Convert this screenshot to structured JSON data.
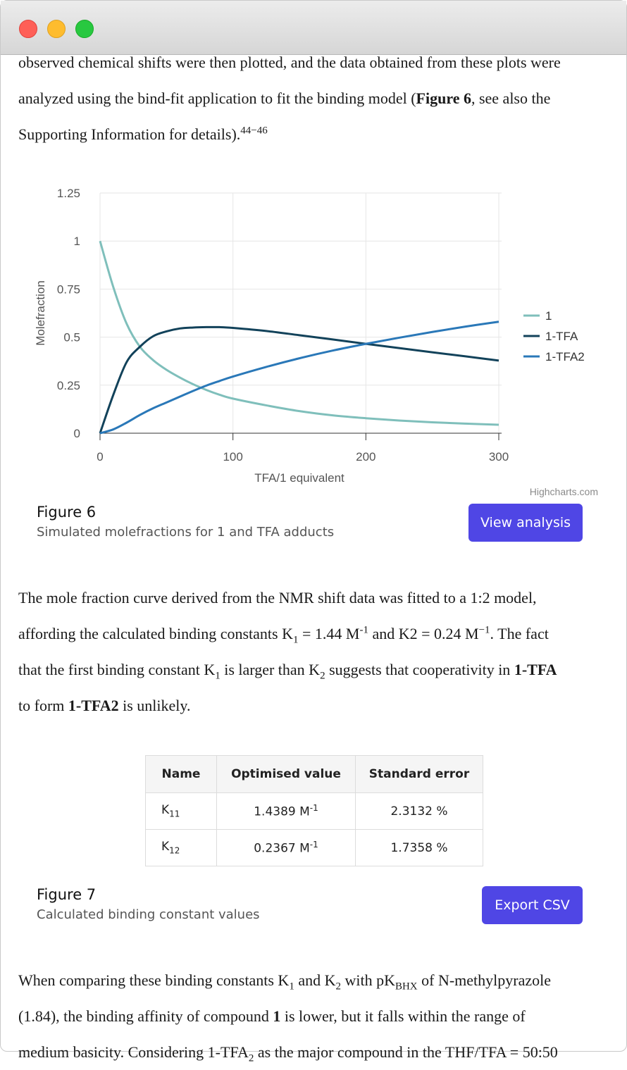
{
  "intro": {
    "line1": "observed chemical shifts were then plotted, and the data obtained from these plots were",
    "line2_pre": "analyzed using the bind-fit application to fit the binding model (",
    "line2_bold": "Figure 6",
    "line2_post": ", see also the",
    "line3": "Supporting Information for details).",
    "citation": "44−46"
  },
  "colors": {
    "series_1": "#7fbfbb",
    "series_1tfa": "#12425a",
    "series_1tfa2": "#2a78b8",
    "button": "#4f46e5"
  },
  "chart_data": {
    "type": "line",
    "title": "",
    "xlabel": "TFA/1 equivalent",
    "ylabel": "Molefraction",
    "xlim": [
      0,
      300
    ],
    "ylim": [
      0,
      1.25
    ],
    "x_ticks": [
      "0",
      "100",
      "200",
      "300"
    ],
    "y_ticks": [
      "0",
      "0.25",
      "0.5",
      "0.75",
      "1",
      "1.25"
    ],
    "grid": true,
    "legend": "right",
    "credit": "Highcharts.com",
    "x": [
      0,
      10,
      20,
      30,
      40,
      50,
      60,
      70,
      80,
      90,
      100,
      125,
      150,
      175,
      200,
      225,
      250,
      275,
      300
    ],
    "series": [
      {
        "name": "1",
        "values": [
          1.0,
          0.76,
          0.57,
          0.45,
          0.38,
          0.33,
          0.29,
          0.255,
          0.225,
          0.2,
          0.18,
          0.145,
          0.115,
          0.093,
          0.078,
          0.066,
          0.057,
          0.05,
          0.044
        ]
      },
      {
        "name": "1-TFA",
        "values": [
          0.0,
          0.2,
          0.37,
          0.45,
          0.505,
          0.53,
          0.545,
          0.55,
          0.552,
          0.552,
          0.548,
          0.532,
          0.51,
          0.488,
          0.465,
          0.443,
          0.421,
          0.4,
          0.378
        ]
      },
      {
        "name": "1-TFA2",
        "values": [
          0.0,
          0.02,
          0.055,
          0.095,
          0.13,
          0.16,
          0.19,
          0.22,
          0.248,
          0.272,
          0.295,
          0.345,
          0.39,
          0.43,
          0.465,
          0.497,
          0.527,
          0.555,
          0.58
        ]
      }
    ]
  },
  "figure6": {
    "title": "Figure 6",
    "desc": "Simulated molefractions for 1 and TFA adducts",
    "button": "View analysis"
  },
  "para2": {
    "l1": "The mole fraction curve derived from the NMR shift data was fitted to a 1:2 model,",
    "l2a": "affording the calculated binding constants K",
    "l2b": "1",
    "l2c": " = 1.44 M",
    "l2d": "-1",
    "l2e": " and K2 = 0.24 M",
    "l2f": "−1",
    "l2g": ". The fact",
    "l3a": "that the first binding constant K",
    "l3b": "1",
    "l3c": " is larger than K",
    "l3d": "2",
    "l3e": " suggests that cooperativity in ",
    "l3f": "1-TFA",
    "l4a": "to form ",
    "l4b": "1-TFA2",
    "l4c": " is unlikely."
  },
  "table": {
    "headers": [
      "Name",
      "Optimised value",
      "Standard error"
    ],
    "rows": [
      {
        "name": "K",
        "sub": "11",
        "value": "1.4389 M",
        "sup": "-1",
        "error": "2.3132 %"
      },
      {
        "name": "K",
        "sub": "12",
        "value": "0.2367 M",
        "sup": "-1",
        "error": "1.7358 %"
      }
    ]
  },
  "figure7": {
    "title": "Figure 7",
    "desc": "Calculated binding constant values",
    "button": "Export CSV"
  },
  "para3": {
    "l1a": "When comparing these binding constants K",
    "l1b": "1",
    "l1c": " and K",
    "l1d": "2",
    "l1e": " with pK",
    "l1f": "BHX",
    "l1g": " of N-methylpyrazole",
    "l2a": "(1.84), the binding affinity of compound ",
    "l2b": "1",
    "l2c": " is lower, but it falls within the range of",
    "l3a": "medium basicity. Considering 1-TFA",
    "l3b": "2",
    "l3c": " as the major compound in the THF/TFA = 50:50"
  }
}
